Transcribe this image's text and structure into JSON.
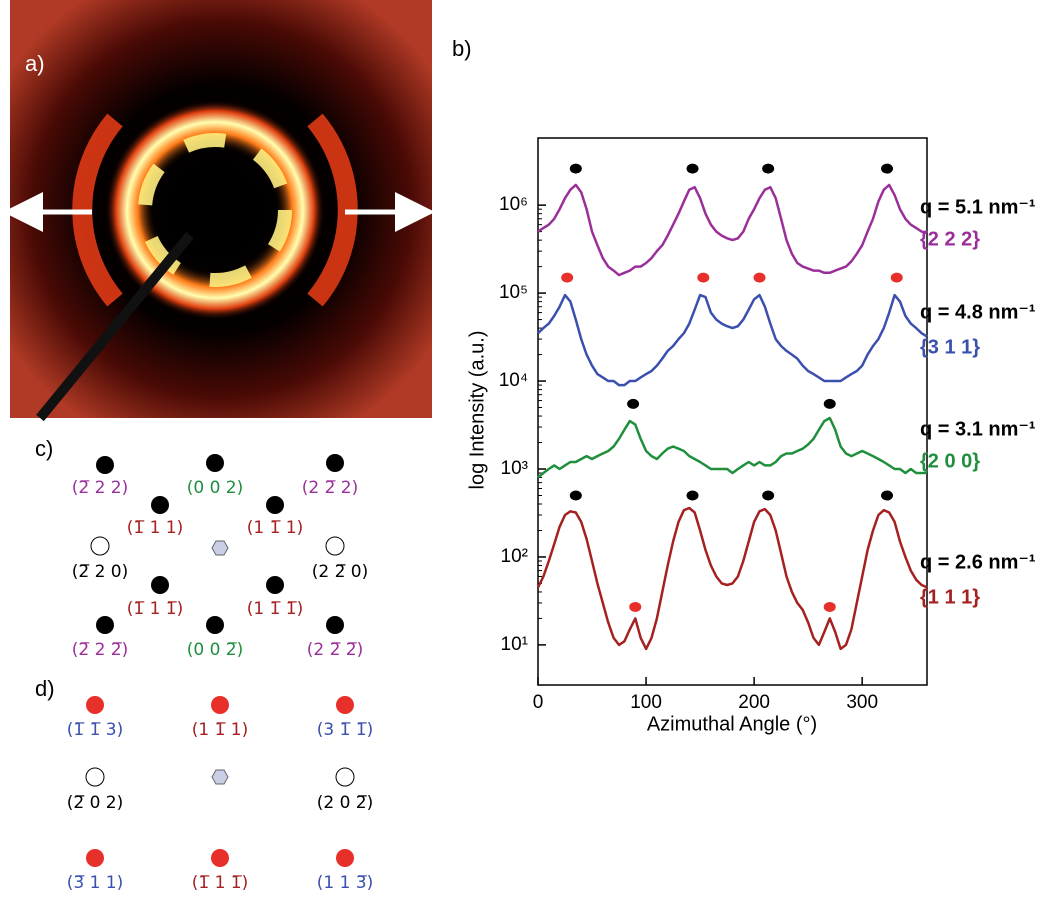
{
  "panel_labels": {
    "a": "a)",
    "b": "b)",
    "c": "c)",
    "d": "d)"
  },
  "chart_data": {
    "type": "line",
    "x_label": "Azimuthal Angle (°)",
    "y_label": "log Intensity (a.u.)",
    "log_y": true,
    "xlim": [
      0,
      360
    ],
    "xticks": [
      0,
      100,
      200,
      300
    ],
    "ylim": [
      3.5,
      5800000
    ],
    "yticks": [
      {
        "value": 10,
        "label": "10¹"
      },
      {
        "value": 100,
        "label": "10²"
      },
      {
        "value": 1000,
        "label": "10³"
      },
      {
        "value": 10000,
        "label": "10⁴"
      },
      {
        "value": 100000,
        "label": "10⁵"
      },
      {
        "value": 1000000,
        "label": "10⁶"
      }
    ],
    "x": [
      0,
      5,
      10,
      15,
      20,
      25,
      30,
      35,
      40,
      45,
      50,
      55,
      60,
      65,
      70,
      75,
      80,
      85,
      90,
      95,
      100,
      105,
      110,
      115,
      120,
      125,
      130,
      135,
      140,
      145,
      150,
      155,
      160,
      165,
      170,
      175,
      180,
      185,
      190,
      195,
      200,
      205,
      210,
      215,
      220,
      225,
      230,
      235,
      240,
      245,
      250,
      255,
      260,
      265,
      270,
      275,
      280,
      285,
      290,
      295,
      300,
      305,
      310,
      315,
      320,
      325,
      330,
      335,
      340,
      345,
      350,
      355,
      360
    ],
    "series": [
      {
        "name": "{2 2 2}",
        "q_label": "q = 5.1 nm⁻¹",
        "color": "#9a2f9a",
        "values": [
          500000,
          550000,
          600000,
          700000,
          900000,
          1200000,
          1500000,
          1700000,
          1400000,
          900000,
          500000,
          350000,
          250000,
          200000,
          180000,
          160000,
          170000,
          180000,
          200000,
          200000,
          220000,
          250000,
          300000,
          350000,
          450000,
          600000,
          800000,
          1100000,
          1500000,
          1600000,
          1200000,
          800000,
          600000,
          500000,
          450000,
          420000,
          400000,
          420000,
          500000,
          700000,
          900000,
          1200000,
          1500000,
          1600000,
          1200000,
          700000,
          400000,
          280000,
          220000,
          200000,
          190000,
          180000,
          180000,
          170000,
          170000,
          180000,
          190000,
          200000,
          230000,
          280000,
          350000,
          500000,
          700000,
          1100000,
          1500000,
          1700000,
          1300000,
          900000,
          700000,
          600000,
          550000,
          500000,
          480000
        ]
      },
      {
        "name": "{3 1 1}",
        "q_label": "q = 4.8 nm⁻¹",
        "color": "#3a4fae",
        "values": [
          35000,
          40000,
          45000,
          55000,
          70000,
          95000,
          80000,
          50000,
          30000,
          20000,
          15000,
          12000,
          11000,
          10000,
          10000,
          9000,
          9000,
          10000,
          10000,
          11000,
          12000,
          13000,
          15000,
          18000,
          22000,
          25000,
          30000,
          35000,
          45000,
          65000,
          95000,
          90000,
          60000,
          50000,
          45000,
          42000,
          40000,
          42000,
          50000,
          65000,
          85000,
          95000,
          70000,
          45000,
          30000,
          25000,
          22000,
          20000,
          18000,
          15000,
          13000,
          12000,
          11000,
          10000,
          10000,
          10000,
          10000,
          11000,
          12000,
          13000,
          15000,
          20000,
          25000,
          30000,
          40000,
          60000,
          95000,
          80000,
          55000,
          45000,
          40000,
          35000,
          32000
        ]
      },
      {
        "name": "{2 0 0}",
        "q_label": "q = 3.1 nm⁻¹",
        "color": "#1f8f3e",
        "values": [
          800,
          900,
          1000,
          1100,
          1000,
          1100,
          1200,
          1200,
          1300,
          1400,
          1300,
          1400,
          1500,
          1600,
          1800,
          2200,
          2800,
          3500,
          3200,
          2200,
          1600,
          1400,
          1300,
          1500,
          1700,
          1800,
          1700,
          1600,
          1400,
          1300,
          1200,
          1100,
          1000,
          1000,
          1000,
          1000,
          900,
          1000,
          1100,
          1200,
          1100,
          1200,
          1100,
          1100,
          1200,
          1400,
          1500,
          1500,
          1600,
          1700,
          1900,
          2200,
          2800,
          3500,
          3800,
          2800,
          1800,
          1500,
          1400,
          1500,
          1600,
          1500,
          1400,
          1300,
          1200,
          1100,
          1000,
          1000,
          900,
          1000,
          900,
          900,
          900
        ]
      },
      {
        "name": "{1 1 1}",
        "q_label": "q = 2.6 nm⁻¹",
        "color": "#a52020",
        "values": [
          45,
          60,
          90,
          140,
          220,
          300,
          330,
          320,
          250,
          160,
          90,
          50,
          30,
          18,
          12,
          10,
          11,
          15,
          20,
          12,
          9,
          12,
          20,
          40,
          80,
          150,
          250,
          340,
          360,
          320,
          200,
          120,
          80,
          60,
          50,
          48,
          50,
          60,
          90,
          150,
          250,
          330,
          350,
          300,
          200,
          110,
          60,
          40,
          30,
          25,
          18,
          12,
          10,
          14,
          20,
          14,
          9,
          10,
          15,
          30,
          60,
          120,
          200,
          300,
          340,
          320,
          250,
          150,
          100,
          70,
          55,
          48,
          45
        ]
      }
    ],
    "peak_markers": [
      {
        "color": "#000000",
        "x": [
          35,
          143,
          213,
          323
        ],
        "y": [
          2600000,
          2600000,
          2600000,
          2600000
        ]
      },
      {
        "color": "#e8302a",
        "x": [
          27,
          153,
          205,
          332
        ],
        "y": [
          150000,
          150000,
          150000,
          150000
        ]
      },
      {
        "color": "#000000",
        "x": [
          88,
          270
        ],
        "y": [
          5500,
          5500
        ]
      },
      {
        "color": "#000000",
        "x": [
          35,
          143,
          213,
          323
        ],
        "y": [
          500,
          500,
          500,
          500
        ]
      },
      {
        "color": "#e8302a",
        "x": [
          90,
          270
        ],
        "y": [
          27,
          27
        ]
      }
    ]
  },
  "panel_c": {
    "labels": [
      "(2̅ 2 2)",
      "(0 0 2)",
      "(2 2̅ 2)",
      "(1̅ 1 1)",
      "(1 1̅ 1)",
      "(2̅ 2 0)",
      "(2 2̅ 0)",
      "(1̅ 1 1̅)",
      "(1 1̅ 1̅)",
      "(2̅ 2 2̅)",
      "(0 0 2̅)",
      "(2 2̅ 2̅)"
    ]
  },
  "panel_d": {
    "labels": [
      "(1̅ 1̅ 3)",
      "(1 1̅ 1)",
      "(3 1̅ 1̅)",
      "(2̅ 0 2)",
      "(2 0 2̅)",
      "(3̅ 1 1)",
      "(1̅ 1 1̅)",
      "(1 1 3̅)"
    ]
  }
}
